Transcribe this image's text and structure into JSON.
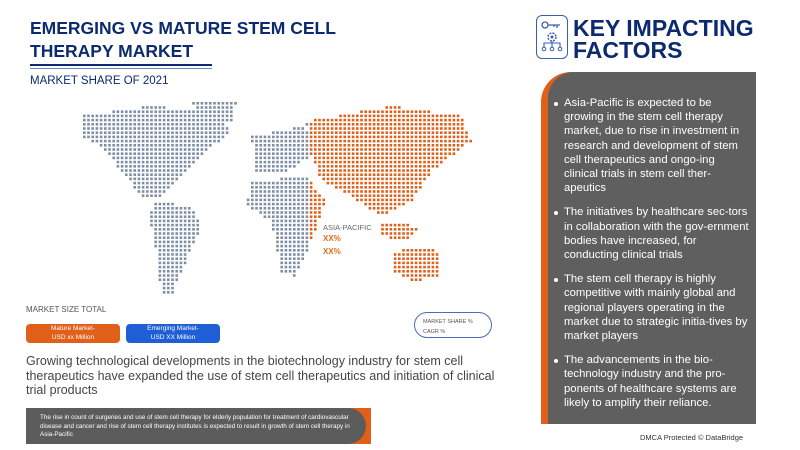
{
  "header": {
    "title": "EMERGING VS MATURE STEM CELL THERAPY MARKET",
    "subtitle": "MARKET SHARE OF 2021"
  },
  "map": {
    "region_label": "ASIA-PACIFIC",
    "region_values": [
      "XX%",
      "XX%"
    ],
    "colors": {
      "highlight": "#e0601a",
      "base": "#7d8ea6"
    }
  },
  "market_size": {
    "label": "MARKET SIZE TOTAL",
    "mature": [
      "Mature Market-",
      "USD xx Million"
    ],
    "emerging": [
      "Emerging Market-",
      "USD XX Million"
    ]
  },
  "legend": {
    "share": "MARKET SHARE %",
    "cagr": "CAGR %"
  },
  "growth_text": "Growing technological developments in the biotechnology industry for stem cell therapeutics have expanded the use of stem cell therapeutics and initiation of clinical trial products",
  "bottom_note": "The rise in count of surgeries and use of stem cell therapy for elderly population for treatment of cardiovascular disease and cancer and rise of stem cell therapy institutes is expected to result in growth of stem cell therapy in Asia-Pacific",
  "key_factors": {
    "icon": "key-gear-network-icon",
    "title": "KEY IMPACTING FACTORS",
    "items": [
      "Asia-Pacific is expected to be growing in the stem cell therapy market, due to rise in investment in research and development of stem cell therapeutics and ongo-ing clinical trials in stem cell ther-apeutics",
      "The initiatives by healthcare sec-tors in collaboration with the gov-ernment bodies have increased, for conducting clinical trials",
      "The stem cell therapy is highly competitive with mainly global and regional players operating in the market due to strategic initia-tives by market players",
      "The advancements in the bio-technology industry and the pro-ponents of healthcare systems are likely to amplify their reliance."
    ]
  },
  "footer": {
    "dmca": "DMCA Protected © DataBridge"
  }
}
